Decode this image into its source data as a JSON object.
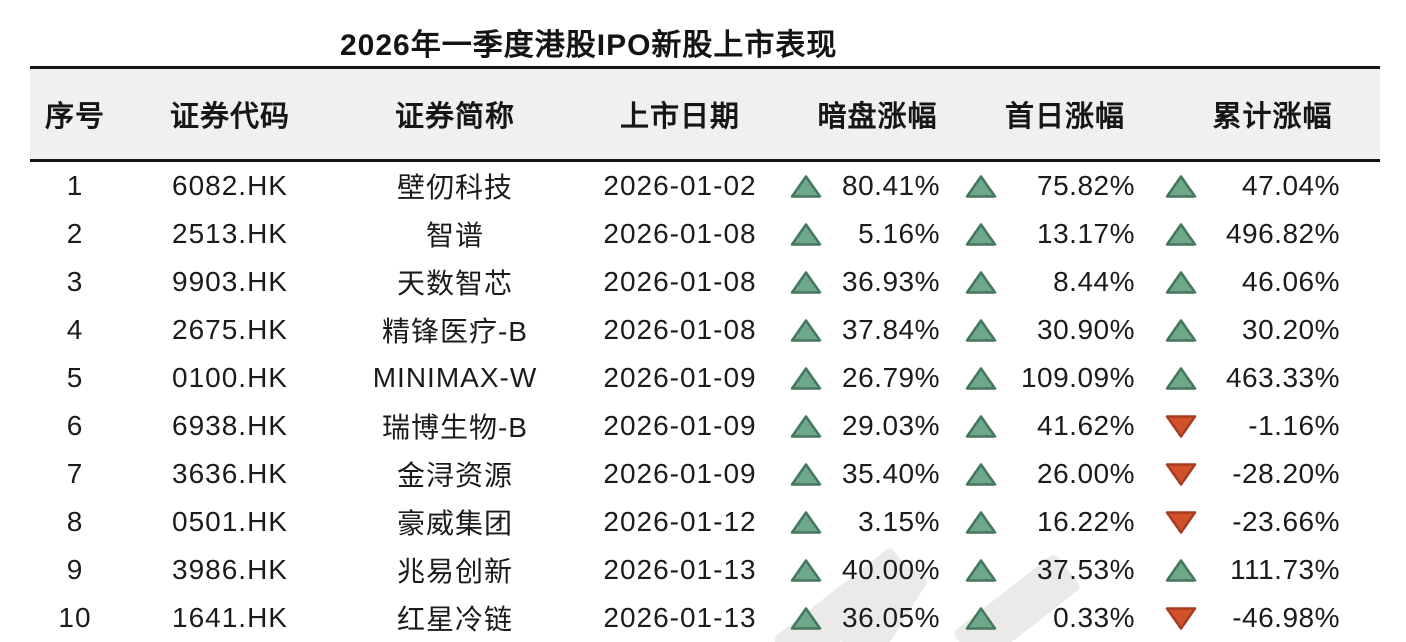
{
  "chart_data": {
    "type": "table",
    "title": "2026年一季度港股IPO新股上市表现",
    "columns": [
      "序号",
      "证券代码",
      "证券简称",
      "上市日期",
      "暗盘涨幅",
      "首日涨幅",
      "累计涨幅"
    ],
    "rows": [
      {
        "no": "1",
        "code": "6082.HK",
        "name": "壁仞科技",
        "date": "2026-01-02",
        "dark_market_change": {
          "direction": "up",
          "value": "80.41%"
        },
        "first_day_change": {
          "direction": "up",
          "value": "75.82%"
        },
        "cumulative_change": {
          "direction": "up",
          "value": "47.04%"
        }
      },
      {
        "no": "2",
        "code": "2513.HK",
        "name": "智谱",
        "date": "2026-01-08",
        "dark_market_change": {
          "direction": "up",
          "value": "5.16%"
        },
        "first_day_change": {
          "direction": "up",
          "value": "13.17%"
        },
        "cumulative_change": {
          "direction": "up",
          "value": "496.82%"
        }
      },
      {
        "no": "3",
        "code": "9903.HK",
        "name": "天数智芯",
        "date": "2026-01-08",
        "dark_market_change": {
          "direction": "up",
          "value": "36.93%"
        },
        "first_day_change": {
          "direction": "up",
          "value": "8.44%"
        },
        "cumulative_change": {
          "direction": "up",
          "value": "46.06%"
        }
      },
      {
        "no": "4",
        "code": "2675.HK",
        "name": "精锋医疗-B",
        "date": "2026-01-08",
        "dark_market_change": {
          "direction": "up",
          "value": "37.84%"
        },
        "first_day_change": {
          "direction": "up",
          "value": "30.90%"
        },
        "cumulative_change": {
          "direction": "up",
          "value": "30.20%"
        }
      },
      {
        "no": "5",
        "code": "0100.HK",
        "name": "MINIMAX-W",
        "date": "2026-01-09",
        "dark_market_change": {
          "direction": "up",
          "value": "26.79%"
        },
        "first_day_change": {
          "direction": "up",
          "value": "109.09%"
        },
        "cumulative_change": {
          "direction": "up",
          "value": "463.33%"
        }
      },
      {
        "no": "6",
        "code": "6938.HK",
        "name": "瑞博生物-B",
        "date": "2026-01-09",
        "dark_market_change": {
          "direction": "up",
          "value": "29.03%"
        },
        "first_day_change": {
          "direction": "up",
          "value": "41.62%"
        },
        "cumulative_change": {
          "direction": "down",
          "value": "-1.16%"
        }
      },
      {
        "no": "7",
        "code": "3636.HK",
        "name": "金浔资源",
        "date": "2026-01-09",
        "dark_market_change": {
          "direction": "up",
          "value": "35.40%"
        },
        "first_day_change": {
          "direction": "up",
          "value": "26.00%"
        },
        "cumulative_change": {
          "direction": "down",
          "value": "-28.20%"
        }
      },
      {
        "no": "8",
        "code": "0501.HK",
        "name": "豪威集团",
        "date": "2026-01-12",
        "dark_market_change": {
          "direction": "up",
          "value": "3.15%"
        },
        "first_day_change": {
          "direction": "up",
          "value": "16.22%"
        },
        "cumulative_change": {
          "direction": "down",
          "value": "-23.66%"
        }
      },
      {
        "no": "9",
        "code": "3986.HK",
        "name": "兆易创新",
        "date": "2026-01-13",
        "dark_market_change": {
          "direction": "up",
          "value": "40.00%"
        },
        "first_day_change": {
          "direction": "up",
          "value": "37.53%"
        },
        "cumulative_change": {
          "direction": "up",
          "value": "111.73%"
        }
      },
      {
        "no": "10",
        "code": "1641.HK",
        "name": "红星冷链",
        "date": "2026-01-13",
        "dark_market_change": {
          "direction": "up",
          "value": "36.05%"
        },
        "first_day_change": {
          "direction": "up",
          "value": "0.33%"
        },
        "cumulative_change": {
          "direction": "down",
          "value": "-46.98%"
        }
      }
    ]
  },
  "colors": {
    "up_triangle": "#6FA888",
    "up_triangle_border": "#45775F",
    "down_triangle": "#D0512C",
    "down_triangle_border": "#A53D1F",
    "header_background": "#F1F0EE",
    "rule_line": "#141414",
    "text": "#1B1B1F"
  }
}
